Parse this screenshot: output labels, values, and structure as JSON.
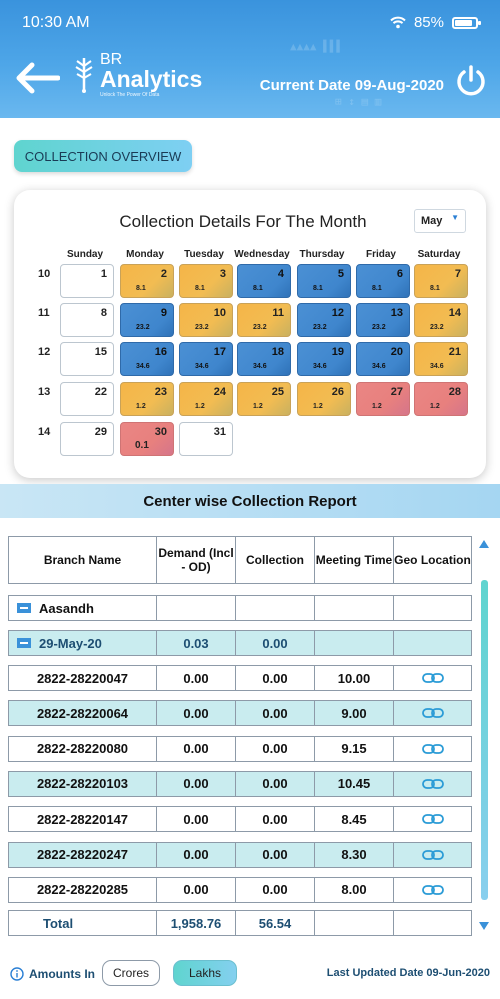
{
  "status_bar": {
    "time": "10:30 AM",
    "battery": "85%",
    "battery_level": 0.85
  },
  "header": {
    "brand_prefix": "BR",
    "brand_name": "Analytics",
    "tagline": "Unlock The Power Of Data",
    "current_date": "Current Date 09-Aug-2020"
  },
  "overview_button": "COLLECTION OVERVIEW",
  "calendar": {
    "title": "Collection Details For The Month",
    "month": "May",
    "days": [
      "Sunday",
      "Monday",
      "Tuesday",
      "Wednesday",
      "Thursday",
      "Friday",
      "Saturday"
    ],
    "weeks": [
      {
        "week": "10",
        "cells": [
          {
            "day": "1",
            "value": "",
            "status": "empty"
          },
          {
            "day": "2",
            "value": "8.1",
            "status": "orange"
          },
          {
            "day": "3",
            "value": "8.1",
            "status": "orange"
          },
          {
            "day": "4",
            "value": "8.1",
            "status": "blue"
          },
          {
            "day": "5",
            "value": "8.1",
            "status": "blue"
          },
          {
            "day": "6",
            "value": "8.1",
            "status": "blue"
          },
          {
            "day": "7",
            "value": "8.1",
            "status": "orange"
          }
        ]
      },
      {
        "week": "11",
        "cells": [
          {
            "day": "8",
            "value": "",
            "status": "empty"
          },
          {
            "day": "9",
            "value": "23.2",
            "status": "blue"
          },
          {
            "day": "10",
            "value": "23.2",
            "status": "orange"
          },
          {
            "day": "11",
            "value": "23.2",
            "status": "orange"
          },
          {
            "day": "12",
            "value": "23.2",
            "status": "blue"
          },
          {
            "day": "13",
            "value": "23.2",
            "status": "blue"
          },
          {
            "day": "14",
            "value": "23.2",
            "status": "orange"
          }
        ]
      },
      {
        "week": "12",
        "cells": [
          {
            "day": "15",
            "value": "",
            "status": "empty"
          },
          {
            "day": "16",
            "value": "34.6",
            "status": "blue"
          },
          {
            "day": "17",
            "value": "34.6",
            "status": "blue"
          },
          {
            "day": "18",
            "value": "34.6",
            "status": "blue"
          },
          {
            "day": "19",
            "value": "34.6",
            "status": "blue"
          },
          {
            "day": "20",
            "value": "34.6",
            "status": "blue"
          },
          {
            "day": "21",
            "value": "34.6",
            "status": "orange"
          }
        ]
      },
      {
        "week": "13",
        "cells": [
          {
            "day": "22",
            "value": "",
            "status": "empty"
          },
          {
            "day": "23",
            "value": "1.2",
            "status": "orange"
          },
          {
            "day": "24",
            "value": "1.2",
            "status": "orange"
          },
          {
            "day": "25",
            "value": "1.2",
            "status": "orange"
          },
          {
            "day": "26",
            "value": "1.2",
            "status": "orange"
          },
          {
            "day": "27",
            "value": "1.2",
            "status": "red"
          },
          {
            "day": "28",
            "value": "1.2",
            "status": "red"
          }
        ]
      },
      {
        "week": "14",
        "cells": [
          {
            "day": "29",
            "value": "",
            "status": "empty"
          },
          {
            "day": "30",
            "value": "0.1",
            "status": "red"
          },
          {
            "day": "31",
            "value": "",
            "status": "empty"
          }
        ]
      }
    ]
  },
  "report": {
    "title": "Center wise Collection Report",
    "columns": [
      "Branch Name",
      "Demand (Incl - OD)",
      "Collection",
      "Meeting Time",
      "Geo Location"
    ],
    "group": "Aasandh",
    "date_row": {
      "label": "29-May-20",
      "demand": "0.03",
      "collection": "0.00"
    },
    "rows": [
      {
        "branch": "2822-28220047",
        "demand": "0.00",
        "collection": "0.00",
        "meeting": "10.00"
      },
      {
        "branch": "2822-28220064",
        "demand": "0.00",
        "collection": "0.00",
        "meeting": "9.00"
      },
      {
        "branch": "2822-28220080",
        "demand": "0.00",
        "collection": "0.00",
        "meeting": "9.15"
      },
      {
        "branch": "2822-28220103",
        "demand": "0.00",
        "collection": "0.00",
        "meeting": "10.45"
      },
      {
        "branch": "2822-28220147",
        "demand": "0.00",
        "collection": "0.00",
        "meeting": "8.45"
      },
      {
        "branch": "2822-28220247",
        "demand": "0.00",
        "collection": "0.00",
        "meeting": "8.30"
      },
      {
        "branch": "2822-28220285",
        "demand": "0.00",
        "collection": "0.00",
        "meeting": "8.00"
      }
    ],
    "total": {
      "label": "Total",
      "demand": "1,958.76",
      "collection": "56.54"
    }
  },
  "footer": {
    "amounts_label": "Amounts In",
    "crores": "Crores",
    "lakhs": "Lakhs",
    "last_updated": "Last Updated Date 09-Jun-2020"
  }
}
